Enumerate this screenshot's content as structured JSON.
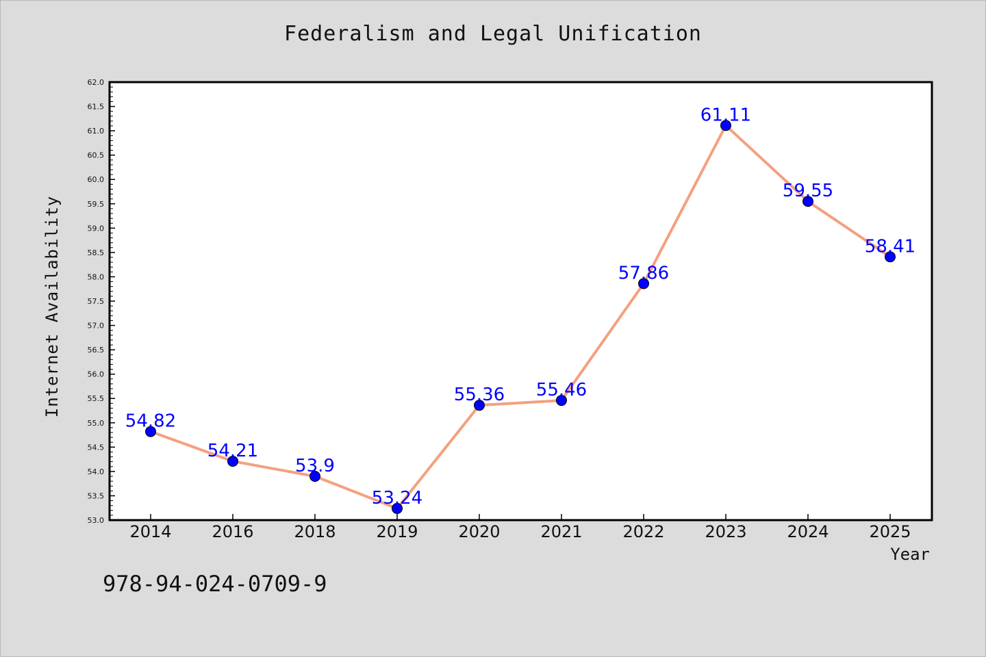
{
  "chart_data": {
    "type": "line",
    "title": "Federalism and Legal Unification",
    "xlabel": "Year",
    "ylabel": "Internet Availability",
    "categories": [
      "2014",
      "2016",
      "2018",
      "2019",
      "2020",
      "2021",
      "2022",
      "2023",
      "2024",
      "2025"
    ],
    "series": [
      {
        "values": [
          54.82,
          54.21,
          53.9,
          53.24,
          55.36,
          55.46,
          57.86,
          61.11,
          59.55,
          58.41
        ]
      }
    ],
    "data_labels": [
      "54.82",
      "54.21",
      "53.9",
      "53.24",
      "55.36",
      "55.46",
      "57.86",
      "61.11",
      "59.55",
      "58.41"
    ],
    "ylim": [
      53.0,
      62.0
    ],
    "yticks": [
      "53.0",
      "53.5",
      "54.0",
      "54.5",
      "55.0",
      "55.5",
      "56.0",
      "56.5",
      "57.0",
      "57.5",
      "58.0",
      "58.5",
      "59.0",
      "59.5",
      "60.0",
      "60.5",
      "61.0",
      "61.5",
      "62.0"
    ],
    "grid": false,
    "colors": {
      "line": "#f4a07f",
      "marker": "#0000ff",
      "label": "#0000ff",
      "background": "#dcdcdc",
      "plot": "#ffffff"
    }
  },
  "annotation": "978-94-024-0709-9"
}
